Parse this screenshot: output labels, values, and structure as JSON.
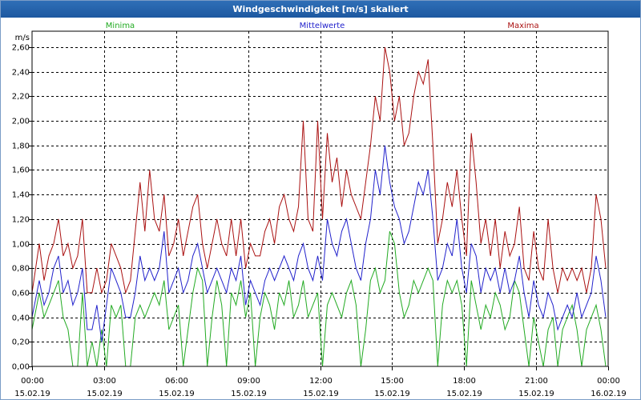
{
  "window": {
    "title": "Windgeschwindigkeit [m/s] skaliert"
  },
  "chart_data": {
    "type": "line",
    "title": "Windgeschwindigkeit [m/s] skaliert",
    "ylabel": "m/s",
    "xlabel": "",
    "ylim": [
      0,
      2.6
    ],
    "xlim": [
      0,
      24
    ],
    "grid": true,
    "legend_position": "top",
    "y_ticks": [
      "0,00",
      "0,20",
      "0,40",
      "0,60",
      "0,80",
      "1,00",
      "1,20",
      "1,40",
      "1,60",
      "1,80",
      "2,00",
      "2,20",
      "2,40",
      "2,60"
    ],
    "x_ticks": [
      {
        "time": "00:00",
        "date": "15.02.19"
      },
      {
        "time": "03:00",
        "date": "15.02.19"
      },
      {
        "time": "06:00",
        "date": "15.02.19"
      },
      {
        "time": "09:00",
        "date": "15.02.19"
      },
      {
        "time": "12:00",
        "date": "15.02.19"
      },
      {
        "time": "15:00",
        "date": "15.02.19"
      },
      {
        "time": "18:00",
        "date": "15.02.19"
      },
      {
        "time": "21:00",
        "date": "15.02.19"
      },
      {
        "time": "00:00",
        "date": "16.02.19"
      }
    ],
    "series": [
      {
        "name": "Minima",
        "color": "#22aa22",
        "x": [
          0,
          0.3,
          0.5,
          0.7,
          0.9,
          1.1,
          1.3,
          1.5,
          1.7,
          1.9,
          2.1,
          2.3,
          2.5,
          2.7,
          2.9,
          3.1,
          3.3,
          3.5,
          3.7,
          3.9,
          4.1,
          4.3,
          4.5,
          4.7,
          4.9,
          5.1,
          5.3,
          5.5,
          5.7,
          5.9,
          6.1,
          6.3,
          6.5,
          6.7,
          6.9,
          7.1,
          7.3,
          7.5,
          7.7,
          7.9,
          8.1,
          8.3,
          8.5,
          8.7,
          8.9,
          9.1,
          9.3,
          9.5,
          9.7,
          9.9,
          10.1,
          10.3,
          10.5,
          10.7,
          10.9,
          11.1,
          11.3,
          11.5,
          11.7,
          11.9,
          12.1,
          12.3,
          12.5,
          12.7,
          12.9,
          13.1,
          13.3,
          13.5,
          13.7,
          13.9,
          14.1,
          14.3,
          14.5,
          14.7,
          14.9,
          15.1,
          15.3,
          15.5,
          15.7,
          15.9,
          16.1,
          16.3,
          16.5,
          16.7,
          16.9,
          17.1,
          17.3,
          17.5,
          17.7,
          17.9,
          18.1,
          18.3,
          18.5,
          18.7,
          18.9,
          19.1,
          19.3,
          19.5,
          19.7,
          19.9,
          20.1,
          20.3,
          20.5,
          20.7,
          20.9,
          21.1,
          21.3,
          21.5,
          21.7,
          21.9,
          22.1,
          22.3,
          22.5,
          22.7,
          22.9,
          23.1,
          23.3,
          23.5,
          23.7,
          23.9
        ],
        "values": [
          0.3,
          0.6,
          0.4,
          0.5,
          0.6,
          0.7,
          0.4,
          0.3,
          0.0,
          0.0,
          0.6,
          0.0,
          0.2,
          0.0,
          0.3,
          0.0,
          0.5,
          0.4,
          0.5,
          0.0,
          0.0,
          0.4,
          0.5,
          0.4,
          0.5,
          0.6,
          0.5,
          0.7,
          0.3,
          0.4,
          0.5,
          0.0,
          0.3,
          0.6,
          0.8,
          0.7,
          0.0,
          0.4,
          0.7,
          0.5,
          0.0,
          0.6,
          0.5,
          0.7,
          0.4,
          0.6,
          0.0,
          0.4,
          0.6,
          0.5,
          0.3,
          0.6,
          0.5,
          0.7,
          0.4,
          0.5,
          0.7,
          0.4,
          0.5,
          0.6,
          0.0,
          0.5,
          0.6,
          0.5,
          0.4,
          0.6,
          0.7,
          0.5,
          0.0,
          0.3,
          0.7,
          0.8,
          0.6,
          0.7,
          1.1,
          1.0,
          0.6,
          0.4,
          0.5,
          0.7,
          0.6,
          0.7,
          0.8,
          0.7,
          0.0,
          0.5,
          0.7,
          0.6,
          0.7,
          0.5,
          0.0,
          0.7,
          0.5,
          0.3,
          0.5,
          0.4,
          0.6,
          0.5,
          0.3,
          0.4,
          0.7,
          0.6,
          0.3,
          0.0,
          0.4,
          0.2,
          0.0,
          0.3,
          0.4,
          0.0,
          0.3,
          0.4,
          0.5,
          0.3,
          0.0,
          0.3,
          0.4,
          0.5,
          0.3,
          0.0
        ]
      },
      {
        "name": "Mittelwerte",
        "color": "#2222cc",
        "x": [
          0,
          0.3,
          0.5,
          0.7,
          0.9,
          1.1,
          1.3,
          1.5,
          1.7,
          1.9,
          2.1,
          2.3,
          2.5,
          2.7,
          2.9,
          3.1,
          3.3,
          3.5,
          3.7,
          3.9,
          4.1,
          4.3,
          4.5,
          4.7,
          4.9,
          5.1,
          5.3,
          5.5,
          5.7,
          5.9,
          6.1,
          6.3,
          6.5,
          6.7,
          6.9,
          7.1,
          7.3,
          7.5,
          7.7,
          7.9,
          8.1,
          8.3,
          8.5,
          8.7,
          8.9,
          9.1,
          9.3,
          9.5,
          9.7,
          9.9,
          10.1,
          10.3,
          10.5,
          10.7,
          10.9,
          11.1,
          11.3,
          11.5,
          11.7,
          11.9,
          12.1,
          12.3,
          12.5,
          12.7,
          12.9,
          13.1,
          13.3,
          13.5,
          13.7,
          13.9,
          14.1,
          14.3,
          14.5,
          14.7,
          14.9,
          15.1,
          15.3,
          15.5,
          15.7,
          15.9,
          16.1,
          16.3,
          16.5,
          16.7,
          16.9,
          17.1,
          17.3,
          17.5,
          17.7,
          17.9,
          18.1,
          18.3,
          18.5,
          18.7,
          18.9,
          19.1,
          19.3,
          19.5,
          19.7,
          19.9,
          20.1,
          20.3,
          20.5,
          20.7,
          20.9,
          21.1,
          21.3,
          21.5,
          21.7,
          21.9,
          22.1,
          22.3,
          22.5,
          22.7,
          22.9,
          23.1,
          23.3,
          23.5,
          23.7,
          23.9
        ],
        "values": [
          0.4,
          0.7,
          0.5,
          0.6,
          0.8,
          0.9,
          0.6,
          0.7,
          0.5,
          0.6,
          0.8,
          0.3,
          0.3,
          0.5,
          0.2,
          0.5,
          0.8,
          0.7,
          0.6,
          0.4,
          0.4,
          0.6,
          0.9,
          0.7,
          0.8,
          0.7,
          0.8,
          1.1,
          0.6,
          0.7,
          0.8,
          0.6,
          0.7,
          0.9,
          1.0,
          0.8,
          0.6,
          0.7,
          0.8,
          0.7,
          0.6,
          0.8,
          0.7,
          0.9,
          0.5,
          0.7,
          0.6,
          0.5,
          0.7,
          0.8,
          0.7,
          0.8,
          0.9,
          0.8,
          0.7,
          0.9,
          1.0,
          0.8,
          0.7,
          0.9,
          0.7,
          1.2,
          1.0,
          0.9,
          1.1,
          1.2,
          1.0,
          0.8,
          0.7,
          1.0,
          1.2,
          1.6,
          1.4,
          1.8,
          1.5,
          1.3,
          1.2,
          1.0,
          1.1,
          1.3,
          1.5,
          1.4,
          1.6,
          1.2,
          0.7,
          0.8,
          1.0,
          0.9,
          1.2,
          0.8,
          0.6,
          1.0,
          0.9,
          0.6,
          0.8,
          0.7,
          0.8,
          0.6,
          0.8,
          0.6,
          0.7,
          0.9,
          0.6,
          0.4,
          0.7,
          0.5,
          0.4,
          0.6,
          0.5,
          0.3,
          0.4,
          0.5,
          0.4,
          0.6,
          0.4,
          0.5,
          0.6,
          0.9,
          0.7,
          0.4
        ]
      },
      {
        "name": "Maxima",
        "color": "#aa1111",
        "x": [
          0,
          0.3,
          0.5,
          0.7,
          0.9,
          1.1,
          1.3,
          1.5,
          1.7,
          1.9,
          2.1,
          2.3,
          2.5,
          2.7,
          2.9,
          3.1,
          3.3,
          3.5,
          3.7,
          3.9,
          4.1,
          4.3,
          4.5,
          4.7,
          4.9,
          5.1,
          5.3,
          5.5,
          5.7,
          5.9,
          6.1,
          6.3,
          6.5,
          6.7,
          6.9,
          7.1,
          7.3,
          7.5,
          7.7,
          7.9,
          8.1,
          8.3,
          8.5,
          8.7,
          8.9,
          9.1,
          9.3,
          9.5,
          9.7,
          9.9,
          10.1,
          10.3,
          10.5,
          10.7,
          10.9,
          11.1,
          11.3,
          11.5,
          11.7,
          11.9,
          12.1,
          12.3,
          12.5,
          12.7,
          12.9,
          13.1,
          13.3,
          13.5,
          13.7,
          13.9,
          14.1,
          14.3,
          14.5,
          14.7,
          14.9,
          15.1,
          15.3,
          15.5,
          15.7,
          15.9,
          16.1,
          16.3,
          16.5,
          16.7,
          16.9,
          17.1,
          17.3,
          17.5,
          17.7,
          17.9,
          18.1,
          18.3,
          18.5,
          18.7,
          18.9,
          19.1,
          19.3,
          19.5,
          19.7,
          19.9,
          20.1,
          20.3,
          20.5,
          20.7,
          20.9,
          21.1,
          21.3,
          21.5,
          21.7,
          21.9,
          22.1,
          22.3,
          22.5,
          22.7,
          22.9,
          23.1,
          23.3,
          23.5,
          23.7,
          23.9
        ],
        "values": [
          0.6,
          1.0,
          0.7,
          0.9,
          1.0,
          1.2,
          0.9,
          1.0,
          0.8,
          0.9,
          1.2,
          0.6,
          0.6,
          0.8,
          0.6,
          0.7,
          1.0,
          0.9,
          0.8,
          0.6,
          0.7,
          1.1,
          1.5,
          1.1,
          1.6,
          1.2,
          1.1,
          1.4,
          0.9,
          1.0,
          1.2,
          0.9,
          1.1,
          1.3,
          1.4,
          1.0,
          0.8,
          1.0,
          1.2,
          1.0,
          0.9,
          1.2,
          0.9,
          1.2,
          0.8,
          1.0,
          0.9,
          0.9,
          1.1,
          1.2,
          1.0,
          1.3,
          1.4,
          1.2,
          1.1,
          1.3,
          2.0,
          1.2,
          1.1,
          2.0,
          1.2,
          1.9,
          1.5,
          1.7,
          1.3,
          1.6,
          1.4,
          1.3,
          1.2,
          1.5,
          1.8,
          2.2,
          2.0,
          2.6,
          2.4,
          2.0,
          2.2,
          1.8,
          1.9,
          2.2,
          2.4,
          2.3,
          2.5,
          1.8,
          1.0,
          1.2,
          1.5,
          1.3,
          1.6,
          1.2,
          0.9,
          1.9,
          1.5,
          1.0,
          1.2,
          0.9,
          1.2,
          0.8,
          1.1,
          0.9,
          1.0,
          1.3,
          0.8,
          0.7,
          1.1,
          0.8,
          0.7,
          1.2,
          0.8,
          0.6,
          0.8,
          0.7,
          0.8,
          0.7,
          0.8,
          0.6,
          0.8,
          1.4,
          1.2,
          0.8
        ]
      }
    ]
  }
}
